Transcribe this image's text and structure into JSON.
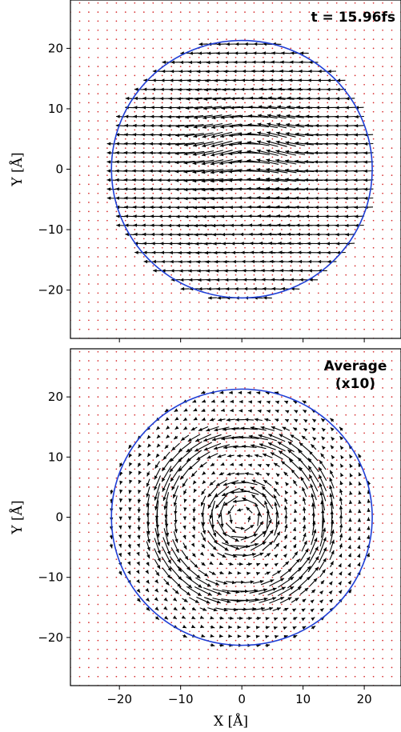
{
  "chart_data": [
    {
      "type": "quiver",
      "panel": "instantaneous",
      "annotation": [
        "t = 15.96fs"
      ],
      "xlabel": "",
      "ylabel": "Y [Å]",
      "xlim": [
        -28,
        26
      ],
      "ylim": [
        -28,
        28
      ],
      "xticks": [
        -20,
        -10,
        0,
        10,
        20
      ],
      "yticks": [
        -20,
        -10,
        0,
        10,
        20
      ],
      "tick_labels": {
        "x": [],
        "y": [
          "−20",
          "−10",
          "0",
          "10",
          "20"
        ]
      },
      "grid_dots": {
        "spacing": 1.5,
        "color": "#d62728"
      },
      "circle": {
        "center": [
          0,
          0
        ],
        "radius": 21.3,
        "color": "#1f3fd6"
      },
      "arrow_color": "#000000",
      "field": "mostly leftward flow filling the circle, with a swirl near the center"
    },
    {
      "type": "quiver",
      "panel": "average",
      "annotation": [
        "Average",
        "(x10)"
      ],
      "xlabel": "X [Å]",
      "ylabel": "Y [Å]",
      "xlim": [
        -28,
        26
      ],
      "ylim": [
        -28,
        28
      ],
      "xticks": [
        -20,
        -10,
        0,
        10,
        20
      ],
      "yticks": [
        -20,
        -10,
        0,
        10,
        20
      ],
      "tick_labels": {
        "x": [
          "−20",
          "−10",
          "0",
          "10",
          "20"
        ],
        "y": [
          "−20",
          "−10",
          "0",
          "10",
          "20"
        ]
      },
      "grid_dots": {
        "spacing": 1.5,
        "color": "#d62728"
      },
      "circle": {
        "center": [
          0,
          0
        ],
        "radius": 21.3,
        "color": "#1f3fd6"
      },
      "arrow_color": "#000000",
      "field": "counter-clockwise vortex rings inside the circle"
    }
  ]
}
